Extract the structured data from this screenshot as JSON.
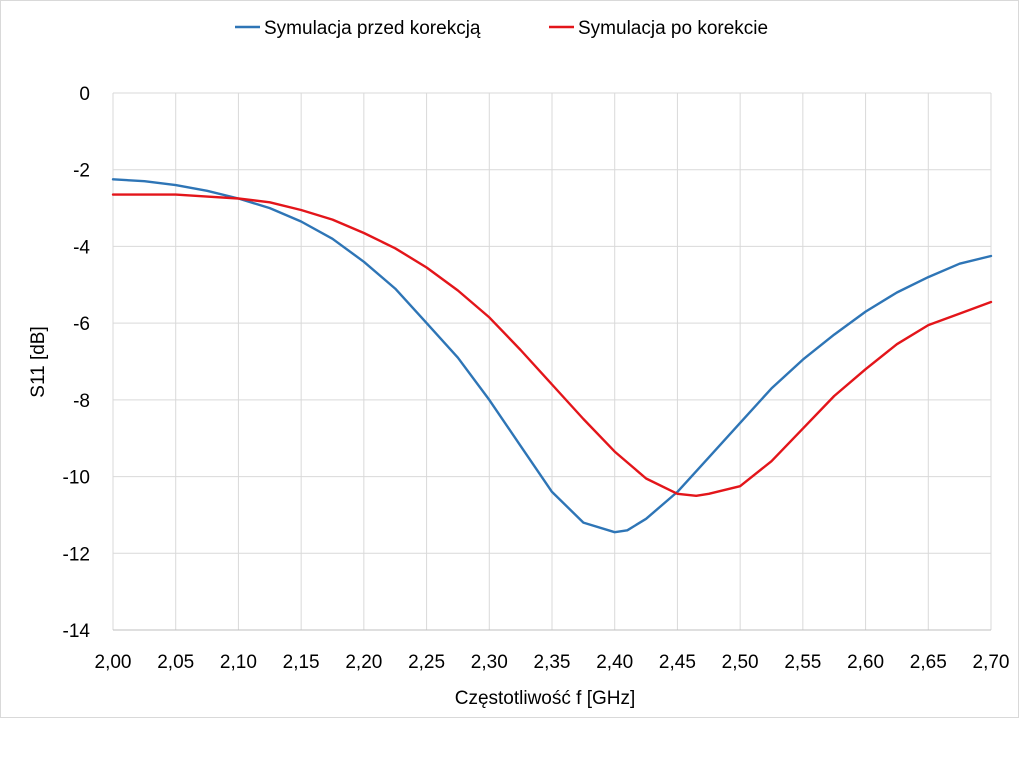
{
  "chart_data": {
    "type": "line",
    "title": "",
    "xlabel": "Częstotliwość f [GHz]",
    "ylabel": "S11 [dB]",
    "xlim": [
      2.0,
      2.7
    ],
    "ylim": [
      -14,
      0
    ],
    "x_ticks": [
      2.0,
      2.05,
      2.1,
      2.15,
      2.2,
      2.25,
      2.3,
      2.35,
      2.4,
      2.45,
      2.5,
      2.55,
      2.6,
      2.65,
      2.7
    ],
    "x_tick_labels": [
      "2,00",
      "2,05",
      "2,10",
      "2,15",
      "2,20",
      "2,25",
      "2,30",
      "2,35",
      "2,40",
      "2,45",
      "2,50",
      "2,55",
      "2,60",
      "2,65",
      "2,70"
    ],
    "y_ticks": [
      0,
      -2,
      -4,
      -6,
      -8,
      -10,
      -12,
      -14
    ],
    "y_tick_labels": [
      "0",
      "-2",
      "-4",
      "-6",
      "-8",
      "-10",
      "-12",
      "-14"
    ],
    "grid": true,
    "legend_position": "top",
    "series": [
      {
        "name": "Symulacja przed korekcją",
        "color": "#2e75b6",
        "x": [
          2.0,
          2.025,
          2.05,
          2.075,
          2.1,
          2.125,
          2.15,
          2.175,
          2.2,
          2.225,
          2.25,
          2.275,
          2.3,
          2.325,
          2.35,
          2.375,
          2.4,
          2.41,
          2.425,
          2.45,
          2.475,
          2.5,
          2.525,
          2.55,
          2.575,
          2.6,
          2.625,
          2.65,
          2.675,
          2.7
        ],
        "y": [
          -2.25,
          -2.3,
          -2.4,
          -2.55,
          -2.75,
          -3.0,
          -3.35,
          -3.8,
          -4.4,
          -5.1,
          -6.0,
          -6.9,
          -8.0,
          -9.2,
          -10.4,
          -11.2,
          -11.45,
          -11.4,
          -11.1,
          -10.4,
          -9.5,
          -8.6,
          -7.7,
          -6.95,
          -6.3,
          -5.7,
          -5.2,
          -4.8,
          -4.45,
          -4.25
        ]
      },
      {
        "name": "Symulacja po korekcie",
        "color": "#e3151a",
        "x": [
          2.0,
          2.025,
          2.05,
          2.075,
          2.1,
          2.125,
          2.15,
          2.175,
          2.2,
          2.225,
          2.25,
          2.275,
          2.3,
          2.325,
          2.35,
          2.375,
          2.4,
          2.425,
          2.45,
          2.465,
          2.475,
          2.5,
          2.525,
          2.55,
          2.575,
          2.6,
          2.625,
          2.65,
          2.675,
          2.7
        ],
        "y": [
          -2.65,
          -2.65,
          -2.65,
          -2.7,
          -2.75,
          -2.85,
          -3.05,
          -3.3,
          -3.65,
          -4.05,
          -4.55,
          -5.15,
          -5.85,
          -6.7,
          -7.6,
          -8.5,
          -9.35,
          -10.05,
          -10.45,
          -10.5,
          -10.45,
          -10.25,
          -9.6,
          -8.75,
          -7.9,
          -7.2,
          -6.55,
          -6.05,
          -5.75,
          -5.45
        ]
      }
    ]
  }
}
